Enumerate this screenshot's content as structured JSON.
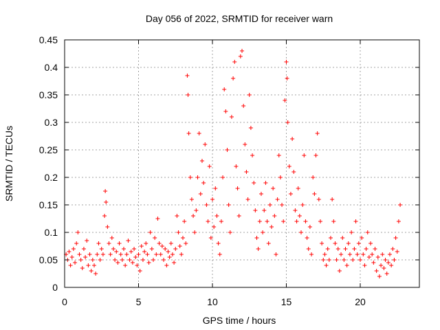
{
  "chart_data": {
    "type": "scatter",
    "title": "Day 056 of 2022, SRMTID for receiver warn",
    "xlabel": "GPS time / hours",
    "ylabel": "SRMTID / TECUs",
    "xlim": [
      0,
      24
    ],
    "ylim": [
      0,
      0.45
    ],
    "x_ticks": [
      0,
      5,
      10,
      15,
      20
    ],
    "x_tick_labels": [
      "0",
      "5",
      "10",
      "15",
      "20"
    ],
    "y_ticks": [
      0,
      0.05,
      0.1,
      0.15,
      0.2,
      0.25,
      0.3,
      0.35,
      0.4,
      0.45
    ],
    "y_tick_labels": [
      "0",
      "0.05",
      "0.1",
      "0.15",
      "0.2",
      "0.25",
      "0.3",
      "0.35",
      "0.4",
      "0.45"
    ],
    "grid": true,
    "marker": "+",
    "color": "#ff0000",
    "series": [
      {
        "name": "SRMTID",
        "points": [
          [
            0.1,
            0.06
          ],
          [
            0.2,
            0.05
          ],
          [
            0.3,
            0.065
          ],
          [
            0.4,
            0.04
          ],
          [
            0.5,
            0.055
          ],
          [
            0.6,
            0.07
          ],
          [
            0.7,
            0.045
          ],
          [
            0.8,
            0.08
          ],
          [
            0.9,
            0.1
          ],
          [
            1.0,
            0.06
          ],
          [
            1.1,
            0.05
          ],
          [
            1.2,
            0.035
          ],
          [
            1.3,
            0.07
          ],
          [
            1.4,
            0.055
          ],
          [
            1.5,
            0.085
          ],
          [
            1.6,
            0.04
          ],
          [
            1.7,
            0.06
          ],
          [
            1.8,
            0.03
          ],
          [
            1.9,
            0.05
          ],
          [
            2.0,
            0.04
          ],
          [
            2.1,
            0.025
          ],
          [
            2.2,
            0.06
          ],
          [
            2.3,
            0.08
          ],
          [
            2.4,
            0.05
          ],
          [
            2.5,
            0.07
          ],
          [
            2.6,
            0.06
          ],
          [
            2.7,
            0.13
          ],
          [
            2.75,
            0.175
          ],
          [
            2.8,
            0.155
          ],
          [
            2.9,
            0.11
          ],
          [
            3.0,
            0.08
          ],
          [
            3.1,
            0.06
          ],
          [
            3.2,
            0.09
          ],
          [
            3.3,
            0.07
          ],
          [
            3.4,
            0.05
          ],
          [
            3.5,
            0.065
          ],
          [
            3.6,
            0.045
          ],
          [
            3.7,
            0.08
          ],
          [
            3.8,
            0.06
          ],
          [
            3.9,
            0.05
          ],
          [
            4.0,
            0.07
          ],
          [
            4.1,
            0.04
          ],
          [
            4.2,
            0.06
          ],
          [
            4.3,
            0.085
          ],
          [
            4.4,
            0.05
          ],
          [
            4.5,
            0.065
          ],
          [
            4.6,
            0.045
          ],
          [
            4.7,
            0.07
          ],
          [
            4.8,
            0.055
          ],
          [
            4.9,
            0.04
          ],
          [
            5.0,
            0.06
          ],
          [
            5.1,
            0.03
          ],
          [
            5.2,
            0.075
          ],
          [
            5.3,
            0.05
          ],
          [
            5.4,
            0.065
          ],
          [
            5.5,
            0.08
          ],
          [
            5.6,
            0.06
          ],
          [
            5.7,
            0.045
          ],
          [
            5.8,
            0.1
          ],
          [
            5.9,
            0.07
          ],
          [
            6.0,
            0.05
          ],
          [
            6.1,
            0.09
          ],
          [
            6.2,
            0.06
          ],
          [
            6.3,
            0.125
          ],
          [
            6.4,
            0.08
          ],
          [
            6.5,
            0.06
          ],
          [
            6.6,
            0.075
          ],
          [
            6.7,
            0.05
          ],
          [
            6.8,
            0.07
          ],
          [
            6.9,
            0.04
          ],
          [
            7.0,
            0.065
          ],
          [
            7.1,
            0.055
          ],
          [
            7.2,
            0.08
          ],
          [
            7.3,
            0.06
          ],
          [
            7.4,
            0.045
          ],
          [
            7.5,
            0.07
          ],
          [
            7.6,
            0.13
          ],
          [
            7.7,
            0.1
          ],
          [
            7.8,
            0.075
          ],
          [
            7.9,
            0.06
          ],
          [
            8.0,
            0.09
          ],
          [
            8.1,
            0.12
          ],
          [
            8.2,
            0.08
          ],
          [
            8.3,
            0.385
          ],
          [
            8.35,
            0.35
          ],
          [
            8.4,
            0.28
          ],
          [
            8.5,
            0.2
          ],
          [
            8.6,
            0.16
          ],
          [
            8.7,
            0.13
          ],
          [
            8.8,
            0.1
          ],
          [
            8.9,
            0.14
          ],
          [
            9.0,
            0.2
          ],
          [
            9.1,
            0.28
          ],
          [
            9.2,
            0.17
          ],
          [
            9.3,
            0.23
          ],
          [
            9.4,
            0.19
          ],
          [
            9.5,
            0.26
          ],
          [
            9.6,
            0.15
          ],
          [
            9.7,
            0.12
          ],
          [
            9.8,
            0.22
          ],
          [
            9.9,
            0.09
          ],
          [
            10.0,
            0.16
          ],
          [
            10.1,
            0.11
          ],
          [
            10.2,
            0.18
          ],
          [
            10.3,
            0.13
          ],
          [
            10.4,
            0.08
          ],
          [
            10.5,
            0.06
          ],
          [
            10.6,
            0.12
          ],
          [
            10.7,
            0.2
          ],
          [
            10.8,
            0.36
          ],
          [
            10.9,
            0.32
          ],
          [
            11.0,
            0.25
          ],
          [
            11.1,
            0.15
          ],
          [
            11.2,
            0.1
          ],
          [
            11.3,
            0.31
          ],
          [
            11.4,
            0.38
          ],
          [
            11.5,
            0.41
          ],
          [
            11.6,
            0.22
          ],
          [
            11.7,
            0.18
          ],
          [
            11.8,
            0.13
          ],
          [
            11.9,
            0.42
          ],
          [
            12.0,
            0.43
          ],
          [
            12.1,
            0.33
          ],
          [
            12.2,
            0.26
          ],
          [
            12.3,
            0.21
          ],
          [
            12.4,
            0.16
          ],
          [
            12.5,
            0.35
          ],
          [
            12.6,
            0.29
          ],
          [
            12.7,
            0.24
          ],
          [
            12.8,
            0.19
          ],
          [
            12.9,
            0.14
          ],
          [
            13.0,
            0.09
          ],
          [
            13.1,
            0.07
          ],
          [
            13.2,
            0.12
          ],
          [
            13.3,
            0.17
          ],
          [
            13.4,
            0.1
          ],
          [
            13.5,
            0.14
          ],
          [
            13.6,
            0.19
          ],
          [
            13.7,
            0.12
          ],
          [
            13.8,
            0.08
          ],
          [
            13.9,
            0.15
          ],
          [
            14.0,
            0.11
          ],
          [
            14.1,
            0.18
          ],
          [
            14.2,
            0.13
          ],
          [
            14.3,
            0.06
          ],
          [
            14.4,
            0.16
          ],
          [
            14.5,
            0.24
          ],
          [
            14.6,
            0.2
          ],
          [
            14.7,
            0.15
          ],
          [
            14.8,
            0.12
          ],
          [
            14.9,
            0.34
          ],
          [
            15.0,
            0.41
          ],
          [
            15.05,
            0.38
          ],
          [
            15.1,
            0.3
          ],
          [
            15.2,
            0.22
          ],
          [
            15.3,
            0.17
          ],
          [
            15.4,
            0.27
          ],
          [
            15.5,
            0.21
          ],
          [
            15.6,
            0.14
          ],
          [
            15.7,
            0.12
          ],
          [
            15.8,
            0.18
          ],
          [
            15.9,
            0.13
          ],
          [
            16.0,
            0.1
          ],
          [
            16.1,
            0.15
          ],
          [
            16.2,
            0.24
          ],
          [
            16.3,
            0.12
          ],
          [
            16.4,
            0.09
          ],
          [
            16.5,
            0.07
          ],
          [
            16.6,
            0.11
          ],
          [
            16.7,
            0.06
          ],
          [
            16.8,
            0.2
          ],
          [
            16.9,
            0.17
          ],
          [
            17.0,
            0.24
          ],
          [
            17.1,
            0.28
          ],
          [
            17.2,
            0.16
          ],
          [
            17.3,
            0.12
          ],
          [
            17.4,
            0.08
          ],
          [
            17.5,
            0.05
          ],
          [
            17.6,
            0.06
          ],
          [
            17.7,
            0.04
          ],
          [
            17.8,
            0.07
          ],
          [
            17.9,
            0.05
          ],
          [
            18.0,
            0.09
          ],
          [
            18.1,
            0.16
          ],
          [
            18.2,
            0.12
          ],
          [
            18.3,
            0.08
          ],
          [
            18.4,
            0.05
          ],
          [
            18.5,
            0.07
          ],
          [
            18.6,
            0.03
          ],
          [
            18.7,
            0.06
          ],
          [
            18.8,
            0.09
          ],
          [
            18.9,
            0.05
          ],
          [
            19.0,
            0.07
          ],
          [
            19.1,
            0.04
          ],
          [
            19.2,
            0.08
          ],
          [
            19.3,
            0.06
          ],
          [
            19.4,
            0.1
          ],
          [
            19.5,
            0.05
          ],
          [
            19.6,
            0.07
          ],
          [
            19.7,
            0.12
          ],
          [
            19.8,
            0.06
          ],
          [
            19.9,
            0.08
          ],
          [
            20.0,
            0.05
          ],
          [
            20.1,
            0.09
          ],
          [
            20.2,
            0.06
          ],
          [
            20.3,
            0.04
          ],
          [
            20.4,
            0.07
          ],
          [
            20.5,
            0.1
          ],
          [
            20.6,
            0.055
          ],
          [
            20.7,
            0.08
          ],
          [
            20.8,
            0.06
          ],
          [
            20.9,
            0.045
          ],
          [
            21.0,
            0.07
          ],
          [
            21.1,
            0.03
          ],
          [
            21.2,
            0.055
          ],
          [
            21.3,
            0.02
          ],
          [
            21.4,
            0.04
          ],
          [
            21.5,
            0.06
          ],
          [
            21.6,
            0.035
          ],
          [
            21.7,
            0.05
          ],
          [
            21.8,
            0.025
          ],
          [
            21.9,
            0.045
          ],
          [
            22.0,
            0.06
          ],
          [
            22.1,
            0.04
          ],
          [
            22.2,
            0.07
          ],
          [
            22.3,
            0.05
          ],
          [
            22.4,
            0.09
          ],
          [
            22.5,
            0.065
          ],
          [
            22.6,
            0.12
          ],
          [
            22.7,
            0.15
          ]
        ]
      }
    ]
  }
}
